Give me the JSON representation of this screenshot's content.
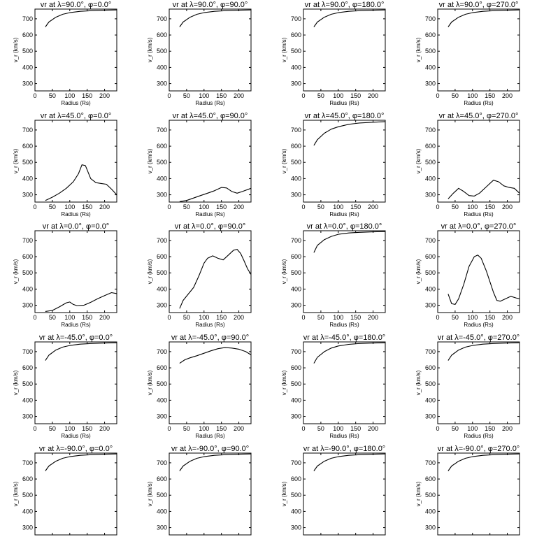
{
  "chart_data": {
    "type": "line",
    "layout": "5 rows x 4 columns grid",
    "xlabel": "Radius (Rs)",
    "ylabel": "v_r (km/s)",
    "xlim": [
      0,
      235
    ],
    "ylim": [
      255,
      760
    ],
    "xticks": [
      0,
      50,
      100,
      150,
      200
    ],
    "yticks": [
      300,
      400,
      500,
      600,
      700
    ],
    "grid": false,
    "panels": [
      {
        "title": "vr at λ=90.0°, φ=0.0°",
        "x": [
          30,
          40,
          60,
          80,
          100,
          130,
          160,
          200,
          235
        ],
        "y": [
          650,
          680,
          710,
          728,
          738,
          746,
          750,
          753,
          755
        ]
      },
      {
        "title": "vr at λ=90.0°, φ=90.0°",
        "x": [
          30,
          40,
          60,
          80,
          100,
          130,
          160,
          200,
          235
        ],
        "y": [
          650,
          680,
          710,
          728,
          738,
          746,
          750,
          753,
          755
        ]
      },
      {
        "title": "vr at λ=90.0°, φ=180.0°",
        "x": [
          30,
          40,
          60,
          80,
          100,
          130,
          160,
          200,
          235
        ],
        "y": [
          650,
          680,
          710,
          728,
          738,
          746,
          750,
          753,
          755
        ]
      },
      {
        "title": "vr at λ=90.0°, φ=270.0°",
        "x": [
          30,
          40,
          60,
          80,
          100,
          130,
          160,
          200,
          235
        ],
        "y": [
          650,
          680,
          710,
          728,
          738,
          746,
          750,
          753,
          755
        ]
      },
      {
        "title": "vr at λ=45.0°, φ=0.0°",
        "x": [
          30,
          50,
          70,
          90,
          110,
          125,
          135,
          145,
          160,
          175,
          190,
          205,
          220,
          235
        ],
        "y": [
          265,
          285,
          310,
          340,
          380,
          430,
          485,
          480,
          400,
          375,
          370,
          365,
          335,
          300
        ]
      },
      {
        "title": "vr at λ=45.0°, φ=90.0°",
        "x": [
          30,
          50,
          70,
          90,
          110,
          130,
          150,
          165,
          180,
          195,
          210,
          235
        ],
        "y": [
          258,
          265,
          280,
          295,
          310,
          325,
          345,
          342,
          320,
          310,
          320,
          340
        ]
      },
      {
        "title": "vr at λ=45.0°, φ=180.0°",
        "x": [
          30,
          40,
          60,
          80,
          100,
          130,
          160,
          200,
          235
        ],
        "y": [
          605,
          640,
          680,
          705,
          720,
          735,
          743,
          748,
          752
        ]
      },
      {
        "title": "vr at λ=45.0°, φ=270.0°",
        "x": [
          30,
          45,
          60,
          75,
          90,
          105,
          120,
          140,
          160,
          175,
          190,
          205,
          220,
          235
        ],
        "y": [
          275,
          310,
          340,
          320,
          295,
          292,
          310,
          350,
          390,
          380,
          355,
          345,
          340,
          310
        ]
      },
      {
        "title": "vr at λ=0.0°, φ=0.0°",
        "x": [
          30,
          50,
          70,
          90,
          100,
          110,
          120,
          140,
          160,
          180,
          200,
          220,
          235
        ],
        "y": [
          262,
          268,
          290,
          315,
          320,
          305,
          298,
          300,
          318,
          340,
          360,
          378,
          372
        ]
      },
      {
        "title": "vr at λ=0.0°, φ=90.0°",
        "x": [
          30,
          40,
          55,
          70,
          85,
          100,
          110,
          125,
          140,
          155,
          170,
          185,
          195,
          205,
          215,
          225,
          235
        ],
        "y": [
          280,
          330,
          370,
          410,
          480,
          560,
          590,
          605,
          590,
          580,
          610,
          640,
          645,
          620,
          575,
          525,
          490
        ]
      },
      {
        "title": "vr at λ=0.0°, φ=180.0°",
        "x": [
          30,
          40,
          60,
          80,
          100,
          130,
          160,
          200,
          235
        ],
        "y": [
          625,
          670,
          705,
          725,
          738,
          746,
          750,
          753,
          755
        ]
      },
      {
        "title": "vr at λ=0.0°, φ=270.0°",
        "x": [
          30,
          40,
          50,
          60,
          75,
          90,
          105,
          115,
          125,
          140,
          160,
          170,
          180,
          195,
          210,
          225,
          235
        ],
        "y": [
          370,
          310,
          305,
          340,
          430,
          540,
          600,
          610,
          590,
          510,
          380,
          330,
          325,
          340,
          355,
          345,
          340
        ]
      },
      {
        "title": "vr at λ=-45.0°, φ=0.0°",
        "x": [
          30,
          40,
          60,
          80,
          100,
          130,
          160,
          200,
          235
        ],
        "y": [
          645,
          678,
          710,
          728,
          738,
          746,
          750,
          753,
          755
        ]
      },
      {
        "title": "vr at λ=-45.0°, φ=90.0°",
        "x": [
          30,
          45,
          60,
          80,
          100,
          120,
          140,
          160,
          180,
          200,
          220,
          235
        ],
        "y": [
          628,
          650,
          662,
          675,
          690,
          705,
          718,
          725,
          722,
          715,
          700,
          680
        ]
      },
      {
        "title": "vr at λ=-45.0°, φ=180.0°",
        "x": [
          30,
          40,
          60,
          80,
          100,
          130,
          160,
          200,
          235
        ],
        "y": [
          628,
          665,
          700,
          722,
          735,
          745,
          750,
          753,
          755
        ]
      },
      {
        "title": "vr at λ=-45.0°, φ=270.0°",
        "x": [
          30,
          40,
          60,
          80,
          100,
          130,
          160,
          200,
          235
        ],
        "y": [
          645,
          678,
          710,
          728,
          738,
          746,
          750,
          753,
          755
        ]
      },
      {
        "title": "vr at λ=-90.0°, φ=0.0°",
        "x": [
          30,
          40,
          60,
          80,
          100,
          130,
          160,
          200,
          235
        ],
        "y": [
          650,
          680,
          710,
          728,
          738,
          746,
          750,
          753,
          755
        ]
      },
      {
        "title": "vr at λ=-90.0°, φ=90.0°",
        "x": [
          30,
          40,
          60,
          80,
          100,
          130,
          160,
          200,
          235
        ],
        "y": [
          650,
          680,
          710,
          728,
          738,
          746,
          750,
          753,
          755
        ]
      },
      {
        "title": "vr at λ=-90.0°, φ=180.0°",
        "x": [
          30,
          40,
          60,
          80,
          100,
          130,
          160,
          200,
          235
        ],
        "y": [
          650,
          680,
          710,
          728,
          738,
          746,
          750,
          753,
          755
        ]
      },
      {
        "title": "vr at λ=-90.0°, φ=270.0°",
        "x": [
          30,
          40,
          60,
          80,
          100,
          130,
          160,
          200,
          235
        ],
        "y": [
          650,
          680,
          710,
          728,
          738,
          746,
          750,
          753,
          755
        ]
      }
    ]
  }
}
